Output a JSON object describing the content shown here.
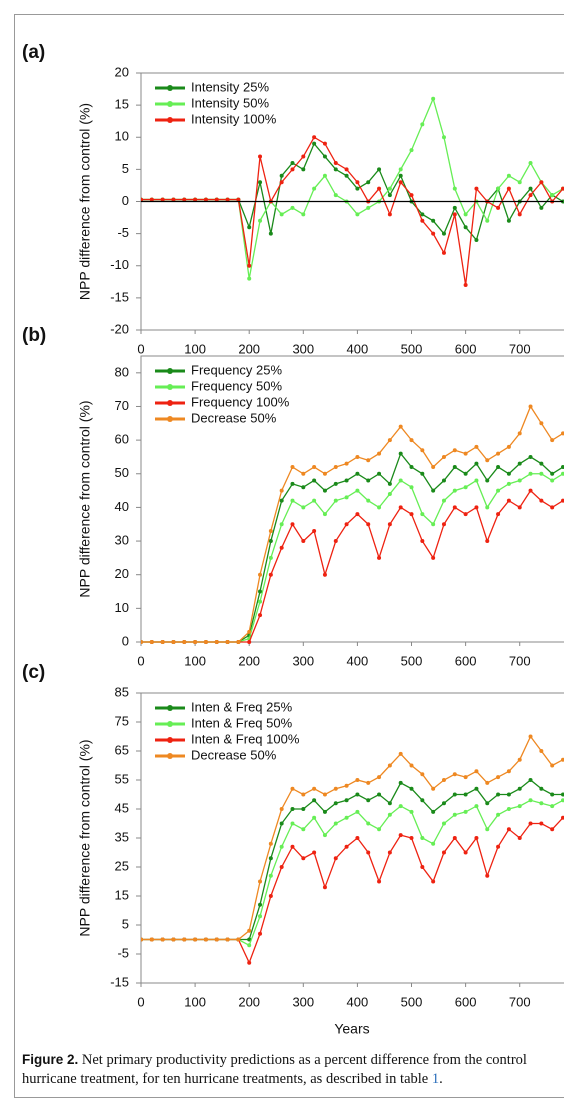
{
  "chart_data": [
    {
      "type": "line",
      "panel_label": "(a)",
      "ylabel": "NPP difference from control (%)",
      "x": [
        0,
        20,
        40,
        60,
        80,
        100,
        120,
        140,
        160,
        180,
        200,
        220,
        240,
        260,
        280,
        300,
        320,
        340,
        360,
        380,
        400,
        420,
        440,
        460,
        480,
        500,
        520,
        540,
        560,
        580,
        600,
        620,
        640,
        660,
        680,
        700,
        720,
        740,
        760,
        780
      ],
      "xlim": [
        0,
        780
      ],
      "xticks": [
        0,
        100,
        200,
        300,
        400,
        500,
        600,
        700
      ],
      "ylim": [
        -20,
        20
      ],
      "yticks": [
        -20,
        -15,
        -10,
        -5,
        0,
        5,
        10,
        15,
        20
      ],
      "zero_line": true,
      "series": [
        {
          "name": "Intensity 25%",
          "color": "#1a8a1a",
          "values": [
            0.3,
            0.3,
            0.3,
            0.3,
            0.3,
            0.3,
            0.3,
            0.3,
            0.3,
            0.3,
            -4,
            3,
            -5,
            4,
            6,
            5,
            9,
            7,
            5,
            4,
            2,
            3,
            5,
            1,
            4,
            0,
            -2,
            -3,
            -5,
            -1,
            -4,
            -6,
            0,
            2,
            -3,
            0,
            2,
            -1,
            1,
            0
          ]
        },
        {
          "name": "Intensity 50%",
          "color": "#66ee55",
          "values": [
            0.3,
            0.3,
            0.3,
            0.3,
            0.3,
            0.3,
            0.3,
            0.3,
            0.3,
            0.3,
            -12,
            -3,
            0,
            -2,
            -1,
            -2,
            2,
            4,
            1,
            0,
            -2,
            -1,
            0,
            2,
            5,
            8,
            12,
            16,
            10,
            2,
            -2,
            0,
            -3,
            2,
            4,
            3,
            6,
            3,
            1,
            2
          ]
        },
        {
          "name": "Intensity 100%",
          "color": "#ee2211",
          "values": [
            0.3,
            0.3,
            0.3,
            0.3,
            0.3,
            0.3,
            0.3,
            0.3,
            0.3,
            0.3,
            -10,
            7,
            0,
            3,
            5,
            7,
            10,
            9,
            6,
            5,
            3,
            0,
            2,
            -2,
            3,
            1,
            -3,
            -5,
            -8,
            -2,
            -13,
            2,
            0,
            -1,
            2,
            -2,
            1,
            3,
            0,
            2
          ]
        }
      ]
    },
    {
      "type": "line",
      "panel_label": "(b)",
      "ylabel": "NPP difference from control (%)",
      "x": [
        0,
        20,
        40,
        60,
        80,
        100,
        120,
        140,
        160,
        180,
        200,
        220,
        240,
        260,
        280,
        300,
        320,
        340,
        360,
        380,
        400,
        420,
        440,
        460,
        480,
        500,
        520,
        540,
        560,
        580,
        600,
        620,
        640,
        660,
        680,
        700,
        720,
        740,
        760,
        780
      ],
      "xlim": [
        0,
        780
      ],
      "xticks": [
        0,
        100,
        200,
        300,
        400,
        500,
        600,
        700
      ],
      "ylim": [
        0,
        85
      ],
      "yticks": [
        0,
        10,
        20,
        30,
        40,
        50,
        60,
        70,
        80
      ],
      "series": [
        {
          "name": "Frequency 25%",
          "color": "#1a8a1a",
          "values": [
            0,
            0,
            0,
            0,
            0,
            0,
            0,
            0,
            0,
            0,
            2,
            15,
            30,
            42,
            47,
            46,
            48,
            45,
            47,
            48,
            50,
            48,
            50,
            47,
            56,
            52,
            50,
            45,
            48,
            52,
            50,
            53,
            48,
            52,
            50,
            53,
            55,
            53,
            50,
            52
          ]
        },
        {
          "name": "Frequency 50%",
          "color": "#66ee55",
          "values": [
            0,
            0,
            0,
            0,
            0,
            0,
            0,
            0,
            0,
            0,
            1,
            12,
            25,
            35,
            42,
            40,
            42,
            38,
            42,
            43,
            45,
            42,
            40,
            44,
            48,
            46,
            38,
            35,
            42,
            45,
            46,
            48,
            40,
            45,
            47,
            48,
            50,
            50,
            48,
            50
          ]
        },
        {
          "name": "Frequency 100%",
          "color": "#ee2211",
          "values": [
            0,
            0,
            0,
            0,
            0,
            0,
            0,
            0,
            0,
            0,
            0,
            8,
            20,
            28,
            35,
            30,
            33,
            20,
            30,
            35,
            38,
            35,
            25,
            35,
            40,
            38,
            30,
            25,
            35,
            40,
            38,
            40,
            30,
            38,
            42,
            40,
            45,
            42,
            40,
            42
          ]
        },
        {
          "name": "Decrease 50%",
          "color": "#ee8822",
          "values": [
            0,
            0,
            0,
            0,
            0,
            0,
            0,
            0,
            0,
            0,
            3,
            20,
            33,
            45,
            52,
            50,
            52,
            50,
            52,
            53,
            55,
            54,
            56,
            60,
            64,
            60,
            57,
            52,
            55,
            57,
            56,
            58,
            54,
            56,
            58,
            62,
            70,
            65,
            60,
            62
          ]
        }
      ]
    },
    {
      "type": "line",
      "panel_label": "(c)",
      "ylabel": "NPP difference from control (%)",
      "xlabel": "Years",
      "x": [
        0,
        20,
        40,
        60,
        80,
        100,
        120,
        140,
        160,
        180,
        200,
        220,
        240,
        260,
        280,
        300,
        320,
        340,
        360,
        380,
        400,
        420,
        440,
        460,
        480,
        500,
        520,
        540,
        560,
        580,
        600,
        620,
        640,
        660,
        680,
        700,
        720,
        740,
        760,
        780
      ],
      "xlim": [
        0,
        780
      ],
      "xticks": [
        0,
        100,
        200,
        300,
        400,
        500,
        600,
        700
      ],
      "ylim": [
        -15,
        85
      ],
      "yticks": [
        -15,
        -5,
        5,
        15,
        25,
        35,
        45,
        55,
        65,
        75,
        85
      ],
      "series": [
        {
          "name": "Inten & Freq 25%",
          "color": "#1a8a1a",
          "values": [
            0,
            0,
            0,
            0,
            0,
            0,
            0,
            0,
            0,
            0,
            0,
            12,
            28,
            40,
            45,
            45,
            48,
            44,
            47,
            48,
            50,
            48,
            50,
            47,
            54,
            52,
            48,
            44,
            47,
            50,
            50,
            52,
            47,
            50,
            50,
            52,
            55,
            52,
            50,
            50
          ]
        },
        {
          "name": "Inten & Freq 50%",
          "color": "#66ee55",
          "values": [
            0,
            0,
            0,
            0,
            0,
            0,
            0,
            0,
            0,
            0,
            -2,
            8,
            22,
            32,
            40,
            38,
            42,
            36,
            40,
            42,
            44,
            40,
            38,
            43,
            46,
            44,
            35,
            33,
            40,
            43,
            44,
            46,
            38,
            43,
            45,
            46,
            48,
            47,
            46,
            48
          ]
        },
        {
          "name": "Inten & Freq 100%",
          "color": "#ee2211",
          "values": [
            0,
            0,
            0,
            0,
            0,
            0,
            0,
            0,
            0,
            0,
            -8,
            2,
            15,
            25,
            32,
            28,
            30,
            18,
            28,
            32,
            35,
            30,
            20,
            30,
            36,
            35,
            25,
            20,
            30,
            35,
            30,
            35,
            22,
            32,
            38,
            35,
            40,
            40,
            38,
            42
          ]
        },
        {
          "name": "Decrease 50%",
          "color": "#ee8822",
          "values": [
            0,
            0,
            0,
            0,
            0,
            0,
            0,
            0,
            0,
            0,
            3,
            20,
            33,
            45,
            52,
            50,
            52,
            50,
            52,
            53,
            55,
            54,
            56,
            60,
            64,
            60,
            57,
            52,
            55,
            57,
            56,
            58,
            54,
            56,
            58,
            62,
            70,
            65,
            60,
            62
          ]
        }
      ]
    }
  ],
  "caption": {
    "label": "Figure 2.",
    "text": "Net primary productivity predictions as a percent difference from the control hurricane treatment, for ten hurricane treatments, as described in table ",
    "ref": "1",
    "tail": "."
  }
}
